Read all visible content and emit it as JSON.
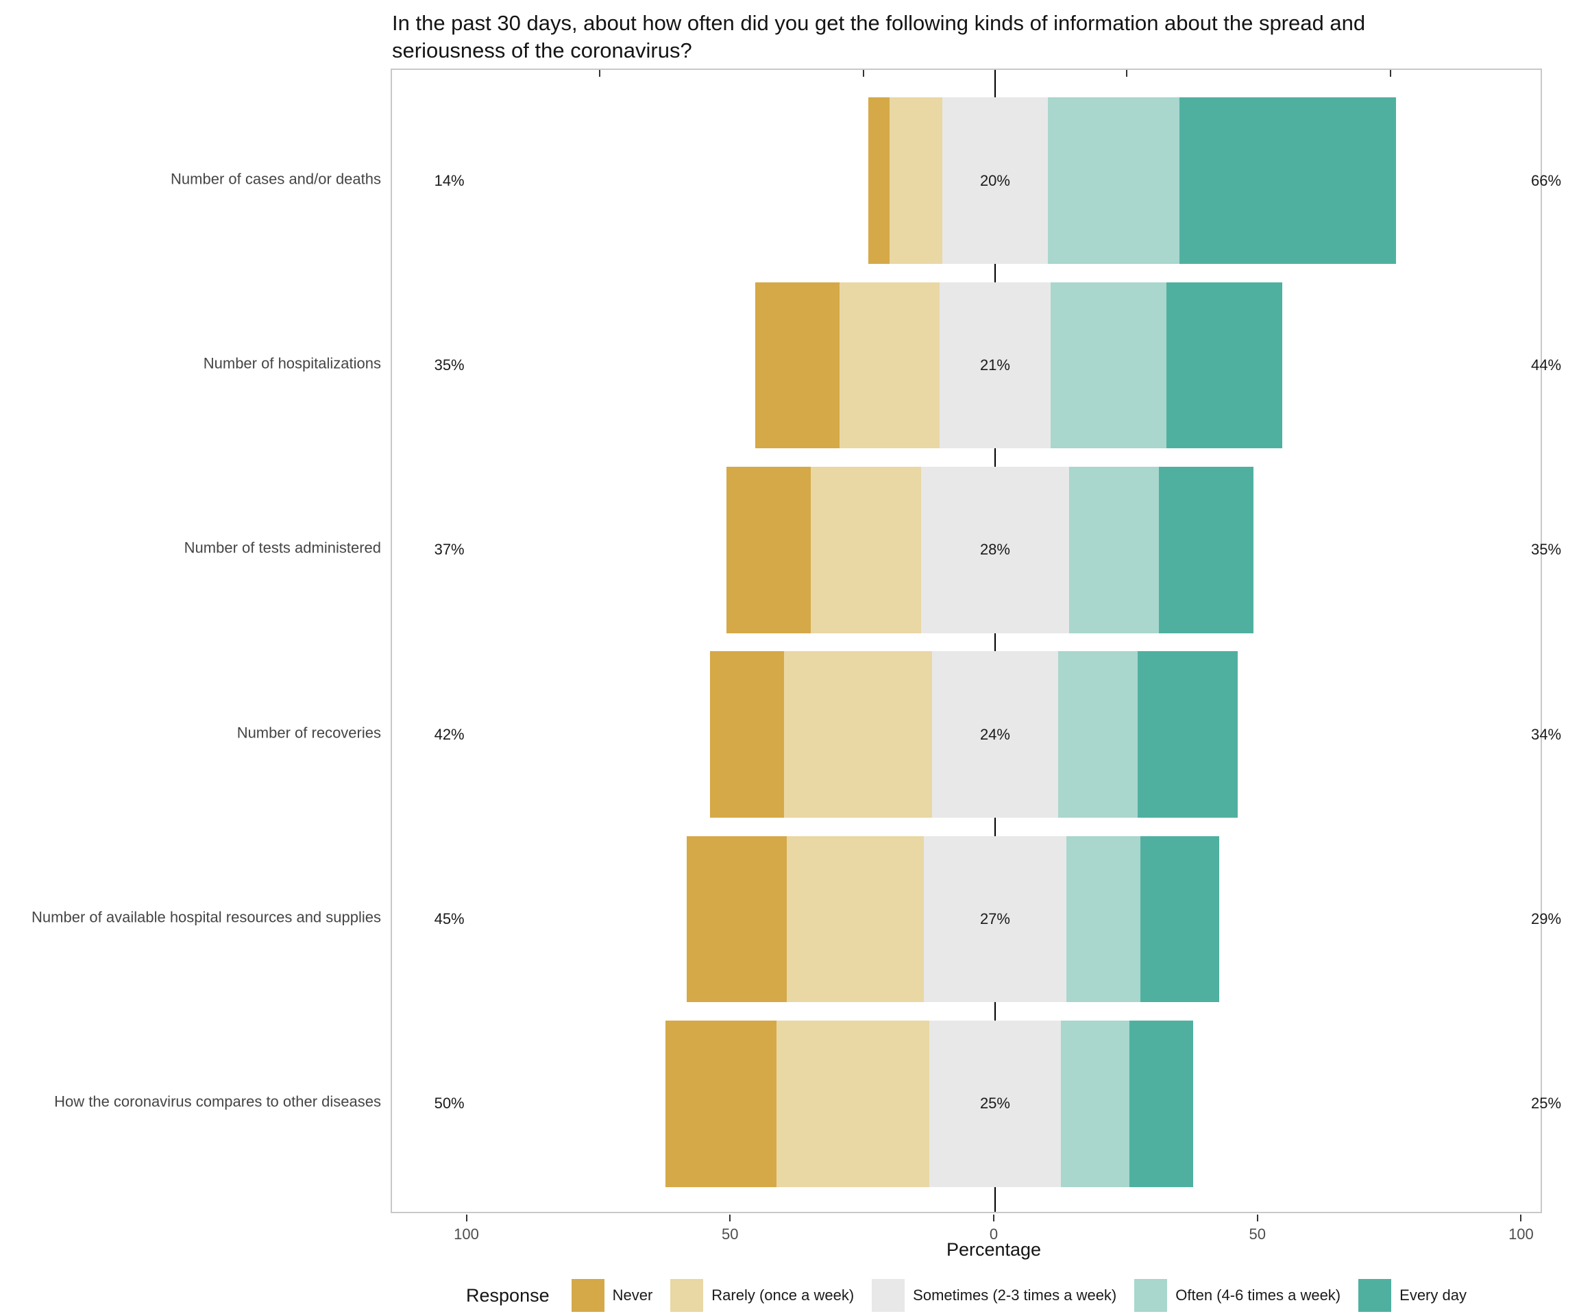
{
  "chart_data": {
    "type": "diverging_stacked_bar",
    "title": "In the past 30 days, about how often did you get the following kinds of information about the spread and seriousness of the coronavirus?",
    "xlabel": "Percentage",
    "legend_title": "Response",
    "legend_position": "bottom",
    "x_tick_values": [
      -100,
      -50,
      0,
      50,
      100
    ],
    "x_tick_labels": [
      "100",
      "50",
      "0",
      "50",
      "100"
    ],
    "x_minor_tick_values": [
      -75,
      -25,
      25,
      75
    ],
    "center_category": "sometimes",
    "responses": [
      {
        "key": "never",
        "label": "Never",
        "color": "#d5a948"
      },
      {
        "key": "rarely",
        "label": "Rarely (once a week)",
        "color": "#e9d7a4"
      },
      {
        "key": "sometimes",
        "label": "Sometimes (2-3 times a week)",
        "color": "#e8e8e8"
      },
      {
        "key": "often",
        "label": "Often (4-6 times a week)",
        "color": "#a9d6cd"
      },
      {
        "key": "every_day",
        "label": "Every day",
        "color": "#4fb0a0"
      }
    ],
    "rows": [
      {
        "category": "Number of cases and/or deaths",
        "left_label": "14%",
        "center_label": "20%",
        "right_label": "66%",
        "values": {
          "never": 4,
          "rarely": 10,
          "sometimes": 20,
          "often": 25,
          "every_day": 41
        }
      },
      {
        "category": "Number of hospitalizations",
        "left_label": "35%",
        "center_label": "21%",
        "right_label": "44%",
        "values": {
          "never": 16,
          "rarely": 19,
          "sometimes": 21,
          "often": 22,
          "every_day": 22
        }
      },
      {
        "category": "Number of tests administered",
        "left_label": "37%",
        "center_label": "28%",
        "right_label": "35%",
        "values": {
          "never": 16,
          "rarely": 21,
          "sometimes": 28,
          "often": 17,
          "every_day": 18
        }
      },
      {
        "category": "Number of recoveries",
        "left_label": "42%",
        "center_label": "24%",
        "right_label": "34%",
        "values": {
          "never": 14,
          "rarely": 28,
          "sometimes": 24,
          "often": 15,
          "every_day": 19
        }
      },
      {
        "category": "Number of available hospital resources and supplies",
        "left_label": "45%",
        "center_label": "27%",
        "right_label": "29%",
        "values": {
          "never": 19,
          "rarely": 26,
          "sometimes": 27,
          "often": 14,
          "every_day": 15
        }
      },
      {
        "category": "How the coronavirus compares to other diseases",
        "left_label": "50%",
        "center_label": "25%",
        "right_label": "25%",
        "values": {
          "never": 21,
          "rarely": 29,
          "sometimes": 25,
          "often": 13,
          "every_day": 12
        }
      }
    ]
  }
}
